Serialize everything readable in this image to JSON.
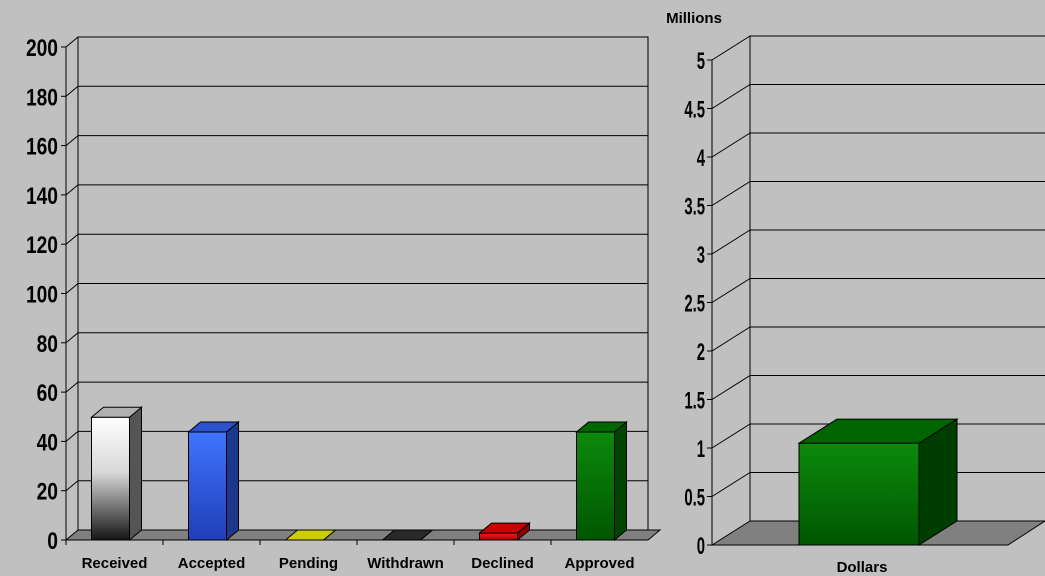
{
  "chart_data": [
    {
      "type": "bar",
      "categories": [
        "Received",
        "Accepted",
        "Pending",
        "Withdrawn",
        "Declined",
        "Approved"
      ],
      "values": [
        49,
        43,
        0,
        0,
        2,
        43
      ],
      "series_colors": [
        "#ffffff",
        "#3366ff",
        "#ffff00",
        "#333333",
        "#ff0000",
        "#008000"
      ],
      "ylim": [
        0,
        200
      ],
      "ytick_labels": [
        "0",
        "20",
        "40",
        "60",
        "80",
        "100",
        "120",
        "140",
        "160",
        "180",
        "200"
      ],
      "grid": true,
      "style": "3d"
    },
    {
      "type": "bar",
      "categories": [
        "Dollars"
      ],
      "values": [
        1.05
      ],
      "units_label": "Millions",
      "series_colors": [
        "#008000"
      ],
      "ylim": [
        0,
        5
      ],
      "ytick_labels": [
        "0",
        "0.5",
        "1",
        "1.5",
        "2",
        "2.5",
        "3",
        "3.5",
        "4",
        "4.5",
        "5"
      ],
      "grid": true,
      "style": "3d"
    }
  ]
}
